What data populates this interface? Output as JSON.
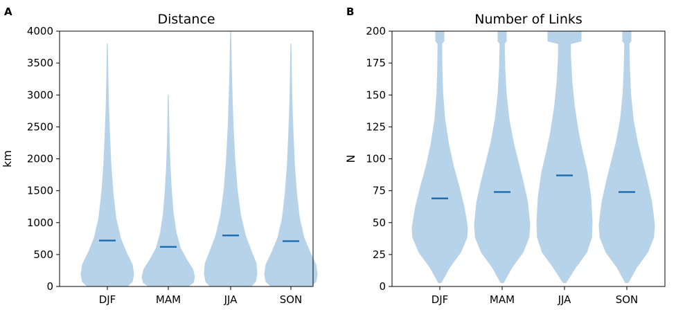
{
  "chart_data": [
    {
      "type": "violin",
      "panel_label": "A",
      "title": "Distance",
      "xlabel": "",
      "ylabel": "km",
      "ylim": [
        0,
        4000
      ],
      "yticks": [
        0,
        500,
        1000,
        1500,
        2000,
        2500,
        3000,
        3500,
        4000
      ],
      "categories": [
        "DJF",
        "MAM",
        "JJA",
        "SON"
      ],
      "medians": [
        720,
        620,
        800,
        710
      ],
      "max": [
        3800,
        3000,
        4000,
        3800
      ],
      "min": [
        0,
        0,
        0,
        0
      ],
      "color": "#b7d3ea",
      "median_color": "#1f6fb0"
    },
    {
      "type": "violin",
      "panel_label": "B",
      "title": "Number of Links",
      "xlabel": "",
      "ylabel": "N",
      "ylim": [
        0,
        200
      ],
      "yticks": [
        0,
        25,
        50,
        75,
        100,
        125,
        150,
        175,
        200
      ],
      "categories": [
        "DJF",
        "MAM",
        "JJA",
        "SON"
      ],
      "medians": [
        69,
        74,
        87,
        74
      ],
      "max": [
        200,
        200,
        200,
        200
      ],
      "min": [
        3,
        3,
        3,
        3
      ],
      "color": "#b7d3ea",
      "median_color": "#1f6fb0"
    }
  ]
}
